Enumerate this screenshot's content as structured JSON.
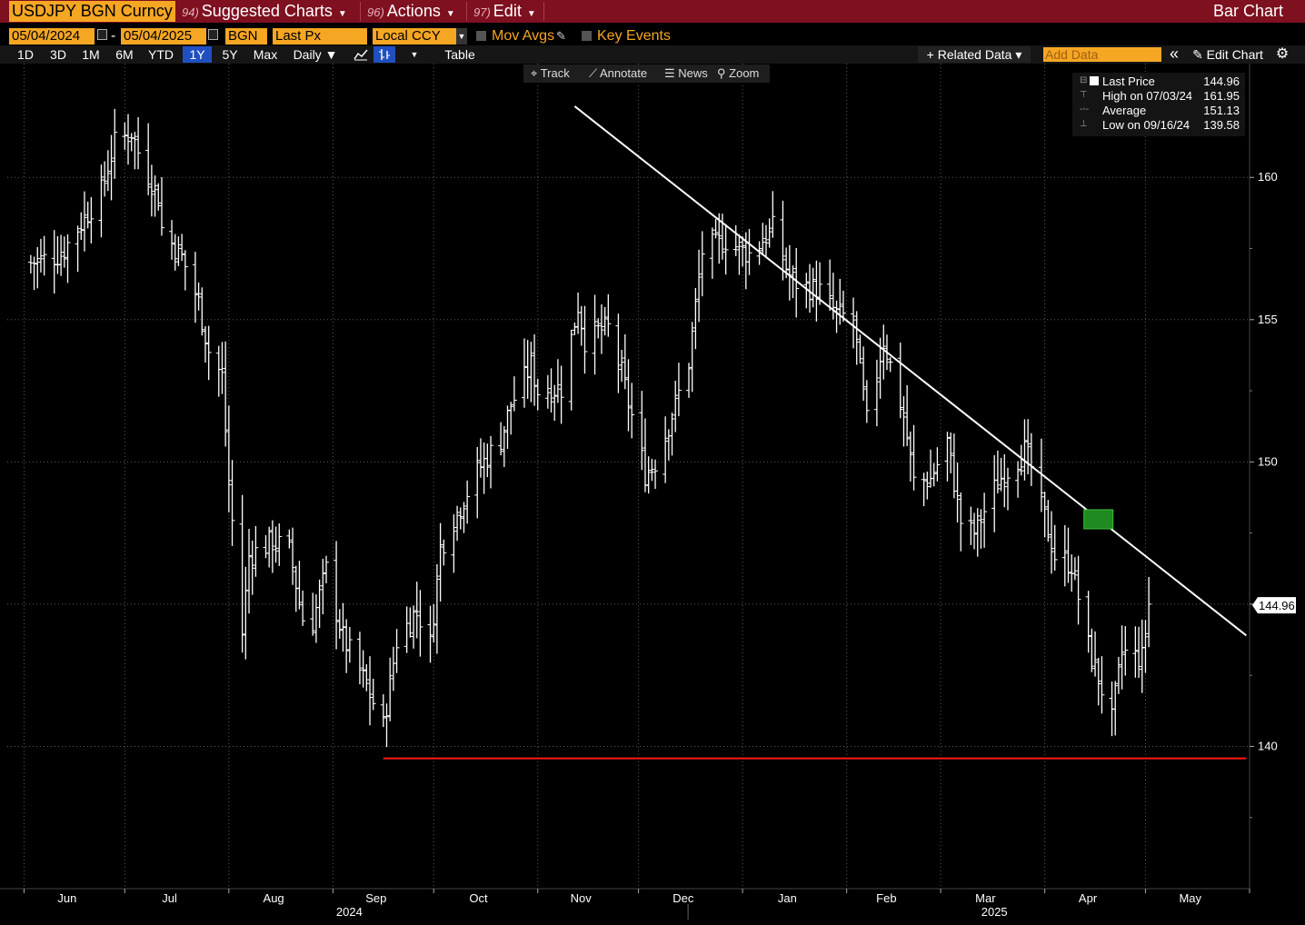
{
  "header": {
    "ticker": "USDJPY BGN Curncy",
    "menu": [
      {
        "num": "94)",
        "label": "Suggested Charts"
      },
      {
        "num": "96)",
        "label": "Actions"
      },
      {
        "num": "97)",
        "label": "Edit"
      }
    ],
    "title": "Bar Chart"
  },
  "options": {
    "start_date": "05/04/2024",
    "dash": "-",
    "end_date": "05/04/2025",
    "source": "BGN",
    "field": "Last Px",
    "currency": "Local CCY",
    "mov_avgs": "Mov Avgs",
    "key_events": "Key Events"
  },
  "toolbar": {
    "periods": [
      "1D",
      "3D",
      "1M",
      "6M",
      "YTD",
      "1Y",
      "5Y",
      "Max"
    ],
    "active_period": "1Y",
    "frequency": "Daily ▼",
    "table": "Table",
    "related_data": "+ Related Data ▾",
    "add_data_placeholder": "Add Data",
    "collapse": "«",
    "edit_chart": "✎ Edit Chart",
    "gear": "⚙"
  },
  "chart_tools": {
    "track": "Track",
    "annotate": "Annotate",
    "news": "News",
    "zoom": "Zoom"
  },
  "legend": {
    "last_label": "Last Price",
    "last_value": "144.96",
    "high_label": "High on 07/03/24",
    "high_value": "161.95",
    "avg_label": "Average",
    "avg_value": "151.13",
    "low_label": "Low on 09/16/24",
    "low_value": "139.58"
  },
  "colors": {
    "trendline": "#ffffff",
    "support": "#ff1a1a",
    "marker": "#1f8a1f",
    "bars": "#ffffff",
    "grid": "#5a5a5a",
    "label_bg": "#ffffff"
  },
  "chart_data": {
    "type": "bar",
    "subtype": "ohlc",
    "frequency": "Daily",
    "ylim": [
      135,
      164
    ],
    "yticks": [
      140,
      145,
      150,
      155,
      160
    ],
    "y_tick_labels": [
      "140",
      "145",
      "150",
      "155",
      "160"
    ],
    "x_tick_labels": [
      "Jun",
      "Jul",
      "Aug",
      "Sep",
      "Oct",
      "Nov",
      "Dec",
      "Jan",
      "Feb",
      "Mar",
      "Apr",
      "May"
    ],
    "year_labels": [
      "2024",
      "2025"
    ],
    "last_price_label": "144.96",
    "grid": true,
    "legend_position": "top-right",
    "anchors": [
      [
        "2024-06-03",
        157.0
      ],
      [
        "2024-06-12",
        157.3
      ],
      [
        "2024-06-24",
        159.5
      ],
      [
        "2024-06-28",
        161.2
      ],
      [
        "2024-07-03",
        161.6
      ],
      [
        "2024-07-05",
        160.9
      ],
      [
        "2024-07-11",
        159.3
      ],
      [
        "2024-07-12",
        158.2
      ],
      [
        "2024-07-18",
        157.2
      ],
      [
        "2024-07-23",
        155.6
      ],
      [
        "2024-07-26",
        153.9
      ],
      [
        "2024-07-30",
        153.0
      ],
      [
        "2024-08-01",
        149.2
      ],
      [
        "2024-08-05",
        144.0
      ],
      [
        "2024-08-07",
        146.7
      ],
      [
        "2024-08-14",
        147.2
      ],
      [
        "2024-08-19",
        146.9
      ],
      [
        "2024-08-23",
        144.5
      ],
      [
        "2024-08-26",
        144.4
      ],
      [
        "2024-08-30",
        146.2
      ],
      [
        "2024-09-04",
        143.8
      ],
      [
        "2024-09-10",
        142.4
      ],
      [
        "2024-09-16",
        140.7
      ],
      [
        "2024-09-20",
        143.7
      ],
      [
        "2024-09-26",
        144.8
      ],
      [
        "2024-09-30",
        143.6
      ],
      [
        "2024-10-03",
        147.0
      ],
      [
        "2024-10-08",
        148.2
      ],
      [
        "2024-10-14",
        149.7
      ],
      [
        "2024-10-21",
        150.8
      ],
      [
        "2024-10-24",
        152.0
      ],
      [
        "2024-10-30",
        153.4
      ],
      [
        "2024-11-01",
        152.5
      ],
      [
        "2024-11-08",
        152.6
      ],
      [
        "2024-11-13",
        155.5
      ],
      [
        "2024-11-15",
        154.3
      ],
      [
        "2024-11-19",
        154.6
      ],
      [
        "2024-11-22",
        154.7
      ],
      [
        "2024-11-26",
        153.1
      ],
      [
        "2024-12-03",
        149.6
      ],
      [
        "2024-12-06",
        150.0
      ],
      [
        "2024-12-10",
        151.3
      ],
      [
        "2024-12-16",
        153.5
      ],
      [
        "2024-12-20",
        157.4
      ],
      [
        "2024-12-27",
        157.8
      ],
      [
        "2025-01-03",
        157.3
      ],
      [
        "2025-01-10",
        158.2
      ],
      [
        "2025-01-15",
        156.5
      ],
      [
        "2025-01-17",
        156.3
      ],
      [
        "2025-01-24",
        156.0
      ],
      [
        "2025-01-29",
        155.2
      ],
      [
        "2025-02-03",
        155.0
      ],
      [
        "2025-02-07",
        151.4
      ],
      [
        "2025-02-12",
        154.3
      ],
      [
        "2025-02-18",
        151.6
      ],
      [
        "2025-02-21",
        149.3
      ],
      [
        "2025-02-26",
        149.4
      ],
      [
        "2025-03-03",
        150.7
      ],
      [
        "2025-03-07",
        147.9
      ],
      [
        "2025-03-11",
        147.5
      ],
      [
        "2025-03-18",
        149.3
      ],
      [
        "2025-03-26",
        150.4
      ],
      [
        "2025-03-28",
        149.8
      ],
      [
        "2025-04-04",
        146.7
      ],
      [
        "2025-04-09",
        146.4
      ],
      [
        "2025-04-14",
        143.5
      ],
      [
        "2025-04-21",
        140.9
      ],
      [
        "2025-04-24",
        143.3
      ],
      [
        "2025-04-30",
        143.1
      ],
      [
        "2025-05-02",
        145.0
      ]
    ],
    "trendline": [
      [
        "2024-11-12",
        162.5
      ],
      [
        "2025-05-31",
        143.9
      ]
    ],
    "support_line": {
      "from": "2024-09-16",
      "to": "2025-05-31",
      "y": 139.58
    },
    "marker": {
      "date": "2025-04-17",
      "y": 148.0
    }
  }
}
